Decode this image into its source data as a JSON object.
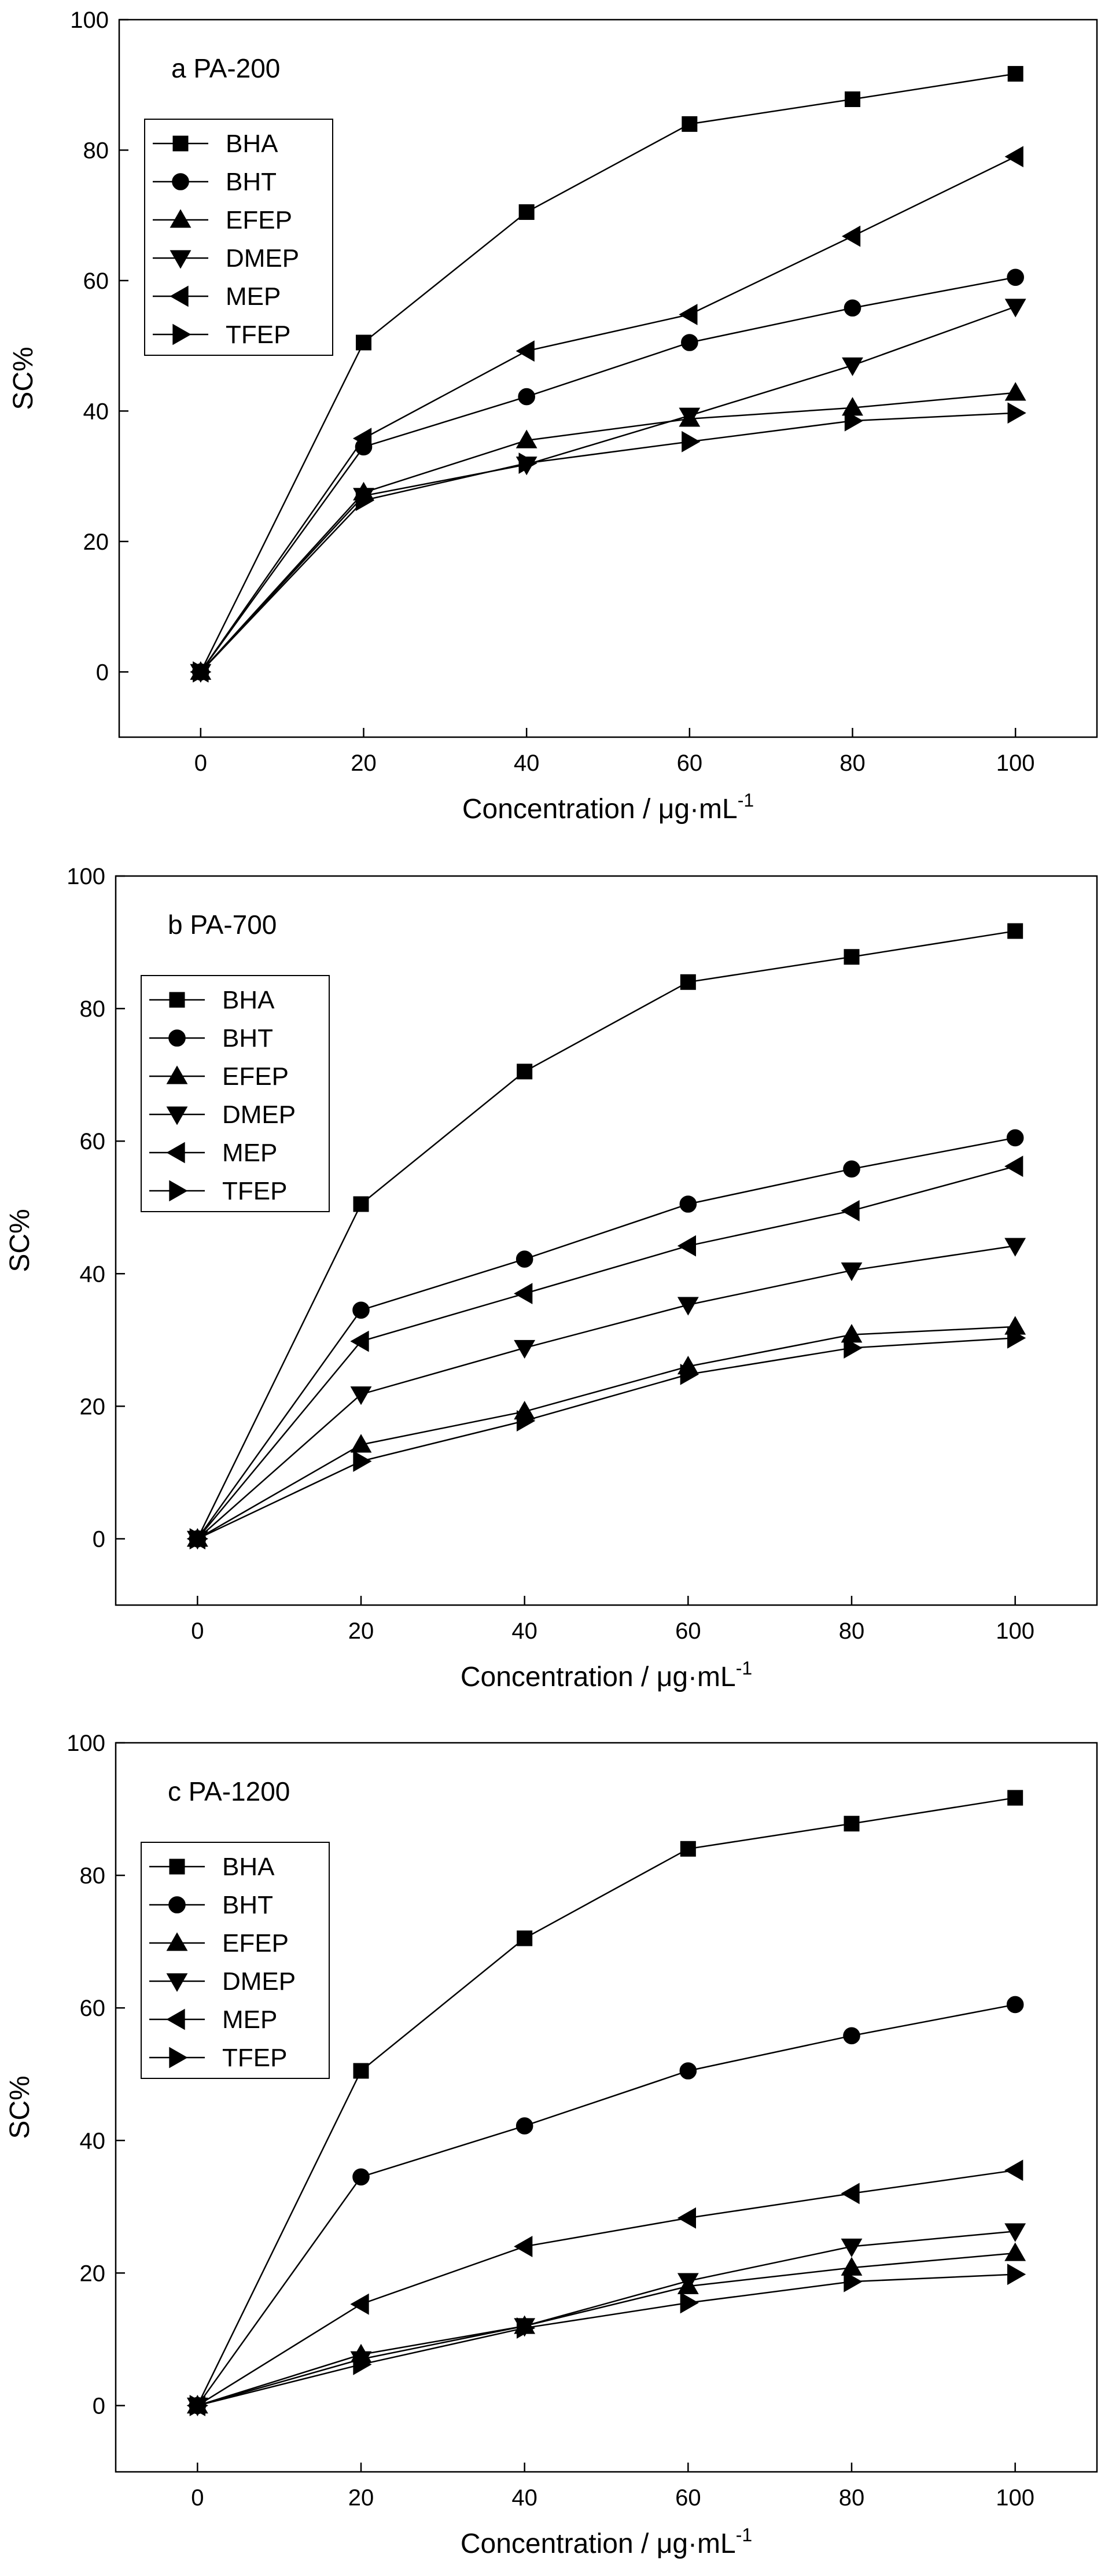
{
  "figure": {
    "background": "#ffffff",
    "line_color": "#000000"
  },
  "chart_data": [
    {
      "type": "line",
      "panel_label": "a PA-200",
      "xlabel": "Concentration / μg·mL",
      "xlabel_sup": "-1",
      "ylabel": "SC%",
      "xlim": [
        -10,
        110
      ],
      "ylim": [
        -10,
        100
      ],
      "xticks": [
        0,
        20,
        40,
        60,
        80,
        100
      ],
      "yticks": [
        0,
        20,
        40,
        60,
        80,
        100
      ],
      "x": [
        0,
        20,
        40,
        60,
        80,
        100
      ],
      "legend_position": "upper-left",
      "series": [
        {
          "name": "BHA",
          "marker": "square",
          "values": [
            0,
            50.5,
            70.5,
            84.0,
            87.8,
            91.7
          ]
        },
        {
          "name": "BHT",
          "marker": "circle",
          "values": [
            0,
            34.5,
            42.2,
            50.5,
            55.8,
            60.5
          ]
        },
        {
          "name": "EFEP",
          "marker": "triangle-up",
          "values": [
            0,
            27.5,
            35.5,
            38.8,
            40.5,
            42.8
          ]
        },
        {
          "name": "DMEP",
          "marker": "triangle-down",
          "values": [
            0,
            27.0,
            31.8,
            39.3,
            47.0,
            56.0
          ]
        },
        {
          "name": "MEP",
          "marker": "triangle-left",
          "values": [
            0,
            35.8,
            49.2,
            54.8,
            66.8,
            79.0
          ]
        },
        {
          "name": "TFEP",
          "marker": "triangle-right",
          "values": [
            0,
            26.3,
            32.0,
            35.3,
            38.5,
            39.7
          ]
        }
      ]
    },
    {
      "type": "line",
      "panel_label": "b PA-700",
      "xlabel": "Concentration / μg·mL",
      "xlabel_sup": "-1",
      "ylabel": "SC%",
      "xlim": [
        -10,
        110
      ],
      "ylim": [
        -10,
        100
      ],
      "xticks": [
        0,
        20,
        40,
        60,
        80,
        100
      ],
      "yticks": [
        0,
        20,
        40,
        60,
        80,
        100
      ],
      "x": [
        0,
        20,
        40,
        60,
        80,
        100
      ],
      "legend_position": "upper-left",
      "series": [
        {
          "name": "BHA",
          "marker": "square",
          "values": [
            0,
            50.5,
            70.5,
            84.0,
            87.8,
            91.7
          ]
        },
        {
          "name": "BHT",
          "marker": "circle",
          "values": [
            0,
            34.5,
            42.2,
            50.5,
            55.8,
            60.5
          ]
        },
        {
          "name": "EFEP",
          "marker": "triangle-up",
          "values": [
            0,
            14.2,
            19.2,
            26.0,
            30.8,
            32.0
          ]
        },
        {
          "name": "DMEP",
          "marker": "triangle-down",
          "values": [
            0,
            21.8,
            28.8,
            35.3,
            40.5,
            44.2
          ]
        },
        {
          "name": "MEP",
          "marker": "triangle-left",
          "values": [
            0,
            29.8,
            37.0,
            44.2,
            49.5,
            56.2
          ]
        },
        {
          "name": "TFEP",
          "marker": "triangle-right",
          "values": [
            0,
            11.7,
            17.8,
            24.8,
            28.8,
            30.3
          ]
        }
      ]
    },
    {
      "type": "line",
      "panel_label": "c PA-1200",
      "xlabel": "Concentration / μg·mL",
      "xlabel_sup": "-1",
      "ylabel": "SC%",
      "xlim": [
        -10,
        110
      ],
      "ylim": [
        -10,
        100
      ],
      "xticks": [
        0,
        20,
        40,
        60,
        80,
        100
      ],
      "yticks": [
        0,
        20,
        40,
        60,
        80,
        100
      ],
      "x": [
        0,
        20,
        40,
        60,
        80,
        100
      ],
      "legend_position": "upper-left",
      "series": [
        {
          "name": "BHA",
          "marker": "square",
          "values": [
            0,
            50.5,
            70.5,
            84.0,
            87.8,
            91.7
          ]
        },
        {
          "name": "BHT",
          "marker": "circle",
          "values": [
            0,
            34.5,
            42.2,
            50.5,
            55.8,
            60.5
          ]
        },
        {
          "name": "EFEP",
          "marker": "triangle-up",
          "values": [
            0,
            7.7,
            12.0,
            18.0,
            20.8,
            23.0
          ]
        },
        {
          "name": "DMEP",
          "marker": "triangle-down",
          "values": [
            0,
            7.0,
            12.0,
            18.8,
            24.0,
            26.3
          ]
        },
        {
          "name": "MEP",
          "marker": "triangle-left",
          "values": [
            0,
            15.3,
            24.0,
            28.3,
            32.0,
            35.5
          ]
        },
        {
          "name": "TFEP",
          "marker": "triangle-right",
          "values": [
            0,
            6.2,
            11.7,
            15.5,
            18.7,
            19.8
          ]
        }
      ]
    }
  ]
}
